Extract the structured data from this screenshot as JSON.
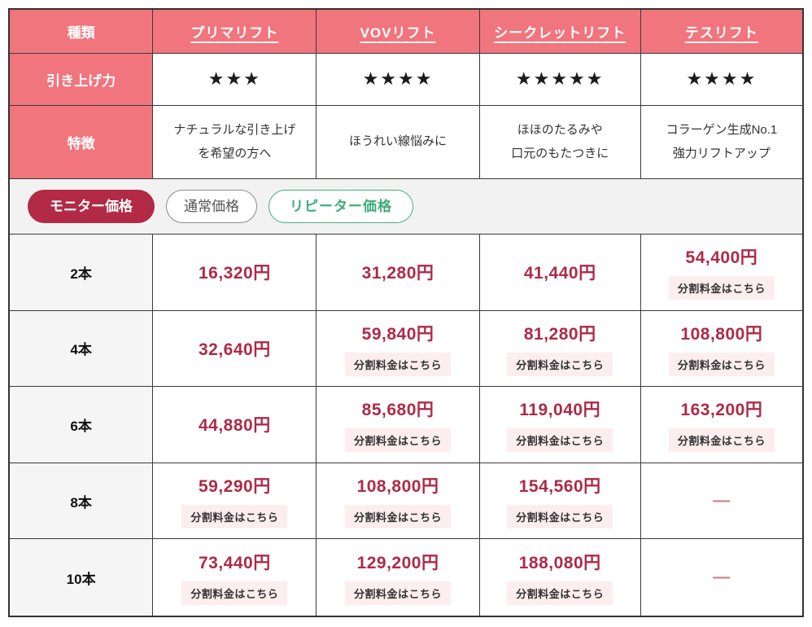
{
  "colors": {
    "pink_header": "#F1757D",
    "accent_red": "#B22A45",
    "price_red": "#AE2A47",
    "badge_bg": "#FCEDEE",
    "tab_row_bg": "#F2F2F2",
    "label_cell_bg": "#F5F5F5",
    "green": "#3CAE7B",
    "border": "#333333"
  },
  "header": {
    "type_label": "種類",
    "columns": [
      {
        "name": "プリマリフト"
      },
      {
        "name": "VOVリフト"
      },
      {
        "name": "シークレットリフト"
      },
      {
        "name": "テスリフト"
      }
    ]
  },
  "lift_power": {
    "label": "引き上げ力",
    "ratings": [
      {
        "stars": "★★★",
        "value": 3
      },
      {
        "stars": "★★★★",
        "value": 4
      },
      {
        "stars": "★★★★★",
        "value": 5
      },
      {
        "stars": "★★★★",
        "value": 4
      }
    ]
  },
  "features": {
    "label": "特徴",
    "items": [
      "ナチュラルな引き上げ\nを希望の方へ",
      "ほうれい線悩みに",
      "ほほのたるみや\n口元のもたつきに",
      "コラーゲン生成No.1\n強力リフトアップ"
    ]
  },
  "tabs": [
    {
      "label": "モニター価格",
      "state": "active"
    },
    {
      "label": "通常価格",
      "state": "normal"
    },
    {
      "label": "リピーター価格",
      "state": "repeater"
    }
  ],
  "installment_label": "分割料金はこちら",
  "empty_value": "—",
  "price_rows": [
    {
      "label": "2本",
      "prices": [
        "16,320円",
        "31,280円",
        "41,440円",
        "54,400円"
      ],
      "installment": [
        false,
        false,
        false,
        true
      ]
    },
    {
      "label": "4本",
      "prices": [
        "32,640円",
        "59,840円",
        "81,280円",
        "108,800円"
      ],
      "installment": [
        false,
        true,
        true,
        true
      ]
    },
    {
      "label": "6本",
      "prices": [
        "44,880円",
        "85,680円",
        "119,040円",
        "163,200円"
      ],
      "installment": [
        false,
        true,
        true,
        true
      ]
    },
    {
      "label": "8本",
      "prices": [
        "59,290円",
        "108,800円",
        "154,560円",
        "—"
      ],
      "installment": [
        true,
        true,
        true,
        false
      ]
    },
    {
      "label": "10本",
      "prices": [
        "73,440円",
        "129,200円",
        "188,080円",
        "—"
      ],
      "installment": [
        true,
        true,
        true,
        false
      ]
    }
  ]
}
